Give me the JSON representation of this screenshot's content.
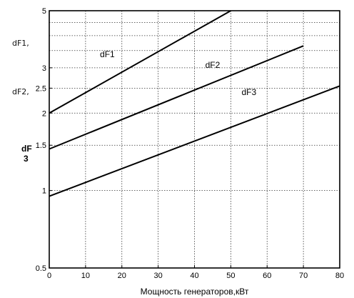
{
  "chart_data": {
    "type": "line",
    "title": "",
    "xlabel": "Мощность генераторов,кВт",
    "ylabel_lines": [
      "dF1,",
      "dF2,",
      "dF",
      "3"
    ],
    "y_scale": "log",
    "xlim": [
      0,
      80
    ],
    "ylim": [
      0.5,
      5
    ],
    "grid": true,
    "x_ticks": [
      0,
      10,
      20,
      30,
      40,
      50,
      60,
      70,
      80
    ],
    "x_tick_labels": [
      "0",
      "10",
      "20",
      "30",
      "40",
      "50",
      "60",
      "70",
      "80"
    ],
    "y_ticks": [
      0.5,
      1,
      1.5,
      2,
      2.5,
      3,
      5
    ],
    "y_tick_labels": [
      "0.5",
      "1",
      "1.5",
      "2",
      "2.5",
      "3",
      "5"
    ],
    "y_grid_values": [
      0.5,
      1,
      1.5,
      2,
      2.5,
      3,
      3.5,
      4,
      4.5,
      5
    ],
    "series": [
      {
        "name": "dF1",
        "x": [
          0,
          50
        ],
        "y": [
          2.0,
          5.0
        ]
      },
      {
        "name": "dF2",
        "x": [
          0,
          70
        ],
        "y": [
          1.45,
          3.65
        ]
      },
      {
        "name": "dF3",
        "x": [
          0,
          80
        ],
        "y": [
          0.95,
          2.55
        ]
      }
    ],
    "series_label_points": [
      {
        "name": "dF1",
        "x": 16,
        "y": 3.3
      },
      {
        "name": "dF2",
        "x": 45,
        "y": 3.0
      },
      {
        "name": "dF3",
        "x": 55,
        "y": 2.35
      }
    ]
  }
}
